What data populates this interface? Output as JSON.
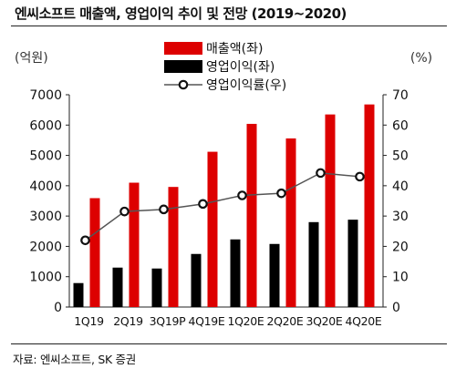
{
  "title": "엔씨소프트 매출액, 영업이익 추이 및 전망 (2019~2020)",
  "source": "자료: 엔씨소프트, SK 증권",
  "chart_data": {
    "type": "bar",
    "categories": [
      "1Q19",
      "2Q19",
      "3Q19P",
      "4Q19E",
      "1Q20E",
      "2Q20E",
      "3Q20E",
      "4Q20E"
    ],
    "series": [
      {
        "name": "매출액(좌)",
        "type": "bar",
        "axis": "left",
        "color": "#dd0000",
        "values": [
          3590,
          4100,
          3960,
          5120,
          6040,
          5560,
          6350,
          6680
        ]
      },
      {
        "name": "영업이익(좌)",
        "type": "bar",
        "axis": "left",
        "color": "#000000",
        "values": [
          790,
          1300,
          1270,
          1750,
          2230,
          2080,
          2800,
          2880
        ]
      },
      {
        "name": "영업이익률(우)",
        "type": "line",
        "axis": "right",
        "color": "#444444",
        "values": [
          22.0,
          31.5,
          32.2,
          34.0,
          36.8,
          37.5,
          44.2,
          43.0
        ]
      }
    ],
    "left_axis": {
      "label": "(억원)",
      "min": 0,
      "max": 7000,
      "ticks": [
        0,
        1000,
        2000,
        3000,
        4000,
        5000,
        6000,
        7000
      ]
    },
    "right_axis": {
      "label": "(%)",
      "min": 0,
      "max": 70,
      "ticks": [
        0,
        10,
        20,
        30,
        40,
        50,
        60,
        70
      ]
    },
    "grid": false,
    "legend": "top-center"
  }
}
